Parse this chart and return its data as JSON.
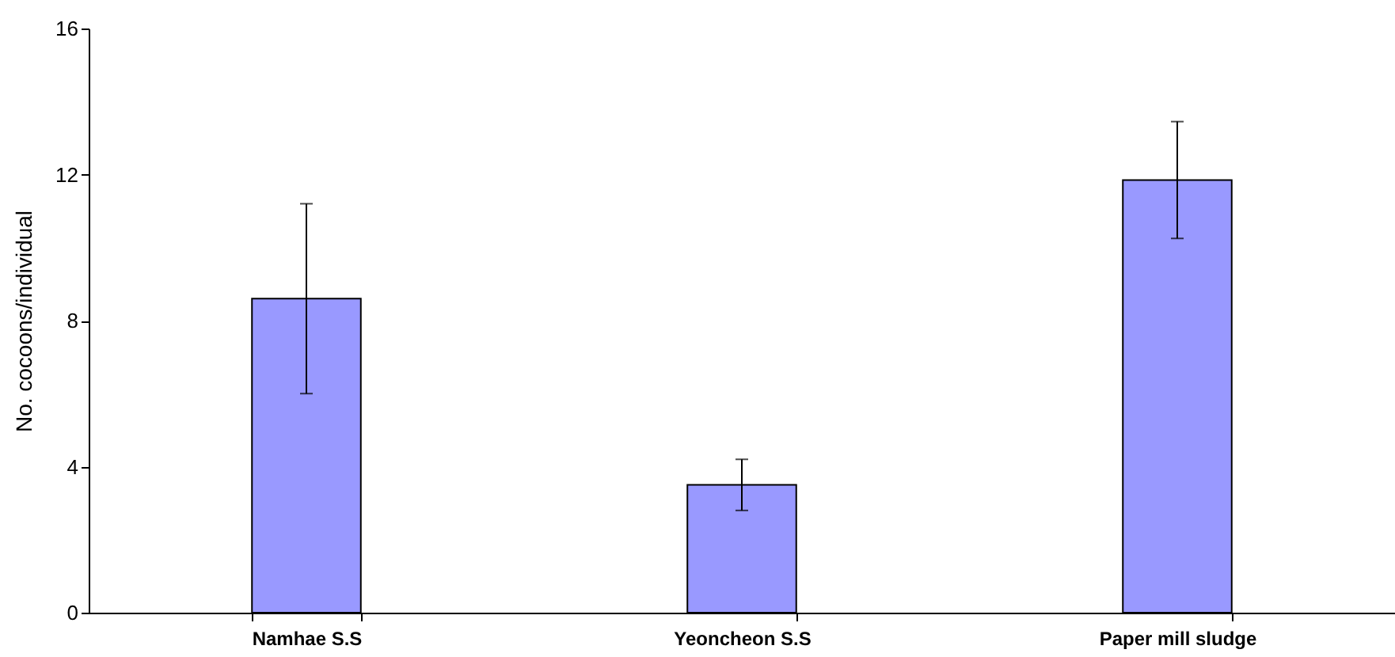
{
  "chart_data": {
    "type": "bar",
    "ylabel": "No. cocoons/individual",
    "categories": [
      "Namhae S.S",
      "Yeoncheon S.S",
      "Paper mill sludge"
    ],
    "values": [
      8.6,
      3.5,
      11.85
    ],
    "errors": [
      2.6,
      0.7,
      1.6
    ],
    "color": "#9999ff",
    "ylim": [
      0,
      16
    ],
    "yticks": [
      0,
      4,
      8,
      12,
      16
    ],
    "grid": false
  }
}
